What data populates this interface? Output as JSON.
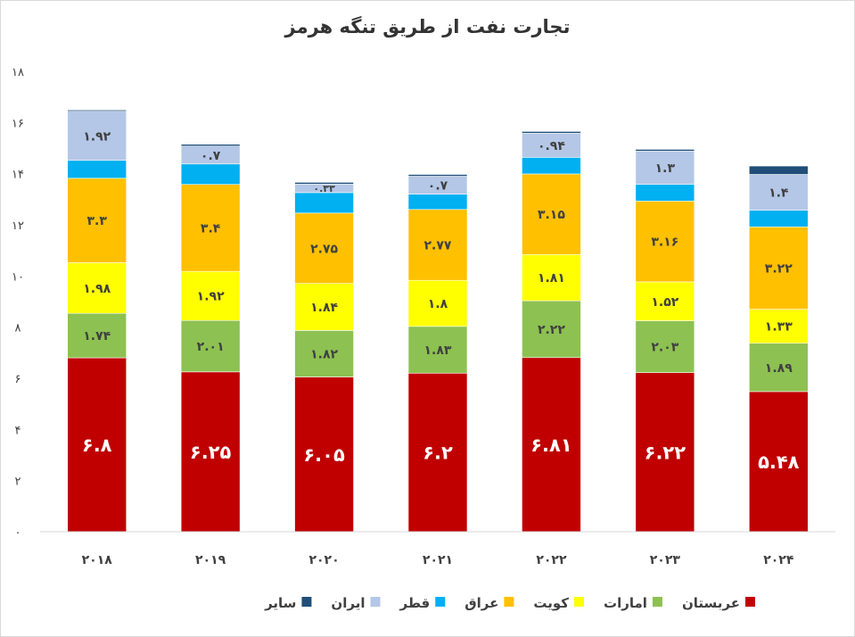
{
  "chart_data": {
    "type": "bar",
    "stacked": true,
    "title": "تجارت نفت از طریق تنگه هرمز",
    "categories": [
      "۲۰۱۸",
      "۲۰۱۹",
      "۲۰۲۰",
      "۲۰۲۱",
      "۲۰۲۲",
      "۲۰۲۳",
      "۲۰۲۴"
    ],
    "ylim": [
      0,
      18
    ],
    "yticks": [
      "۰",
      "۲",
      "۴",
      "۶",
      "۸",
      "۱۰",
      "۱۲",
      "۱۴",
      "۱۶",
      "۱۸"
    ],
    "grid": false,
    "legend_position": "bottom",
    "series": [
      {
        "name": "عربستان",
        "color": "#c00000",
        "label_color": "#ffffff",
        "values": [
          6.8,
          6.25,
          6.05,
          6.2,
          6.81,
          6.22,
          5.48
        ],
        "labels": [
          "۶.۸",
          "۶.۲۵",
          "۶.۰۵",
          "۶.۲",
          "۶.۸۱",
          "۶.۲۲",
          "۵.۴۸"
        ]
      },
      {
        "name": "امارات",
        "color": "#8dc152",
        "label_color": "#404040",
        "values": [
          1.74,
          2.01,
          1.82,
          1.83,
          2.22,
          2.03,
          1.89
        ],
        "labels": [
          "۱.۷۴",
          "۲.۰۱",
          "۱.۸۲",
          "۱.۸۳",
          "۲.۲۲",
          "۲.۰۳",
          "۱.۸۹"
        ]
      },
      {
        "name": "کویت",
        "color": "#ffff00",
        "label_color": "#404040",
        "values": [
          1.98,
          1.92,
          1.84,
          1.8,
          1.81,
          1.52,
          1.33
        ],
        "labels": [
          "۱.۹۸",
          "۱.۹۲",
          "۱.۸۴",
          "۱.۸",
          "۱.۸۱",
          "۱.۵۲",
          "۱.۳۳"
        ]
      },
      {
        "name": "عراق",
        "color": "#ffc000",
        "label_color": "#404040",
        "values": [
          3.3,
          3.4,
          2.75,
          2.77,
          3.15,
          3.16,
          3.22
        ],
        "labels": [
          "۳.۳",
          "۳.۴",
          "۲.۷۵",
          "۲.۷۷",
          "۳.۱۵",
          "۳.۱۶",
          "۳.۲۲"
        ]
      },
      {
        "name": "قطر",
        "color": "#00b0f0",
        "label_color": "#404040",
        "values": [
          0.7,
          0.8,
          0.8,
          0.6,
          0.65,
          0.65,
          0.65
        ],
        "labels": [
          "",
          "",
          "",
          "",
          "",
          "",
          ""
        ]
      },
      {
        "name": "ایران",
        "color": "#b4c7e7",
        "label_color": "#404040",
        "values": [
          1.92,
          0.7,
          0.33,
          0.7,
          0.94,
          1.3,
          1.4
        ],
        "labels": [
          "۱.۹۲",
          "۰.۷",
          "۰.۳۳",
          "۰.۷",
          "۰.۹۴",
          "۱.۳",
          "۱.۴"
        ]
      },
      {
        "name": "سایر",
        "color": "#1f4e79",
        "label_color": "#ffffff",
        "values": [
          0.05,
          0.07,
          0.07,
          0.07,
          0.07,
          0.07,
          0.33
        ],
        "labels": [
          "",
          "",
          "",
          "",
          "",
          "",
          ""
        ]
      }
    ]
  }
}
